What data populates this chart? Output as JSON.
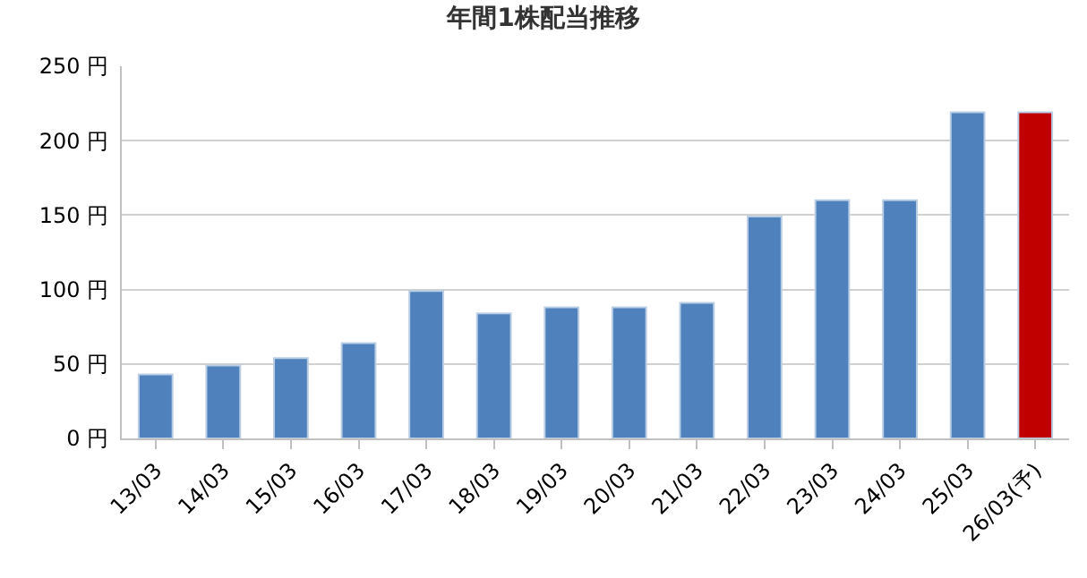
{
  "chart_data": {
    "type": "bar",
    "title": "年間1株配当推移",
    "categories": [
      "13/03",
      "14/03",
      "15/03",
      "16/03",
      "17/03",
      "18/03",
      "19/03",
      "20/03",
      "21/03",
      "22/03",
      "23/03",
      "24/03",
      "25/03",
      "26/03(予)"
    ],
    "values": [
      43,
      49,
      54,
      64,
      99,
      84,
      88,
      88,
      91,
      149,
      160,
      160,
      219,
      219
    ],
    "colors": [
      "#4f81bd",
      "#4f81bd",
      "#4f81bd",
      "#4f81bd",
      "#4f81bd",
      "#4f81bd",
      "#4f81bd",
      "#4f81bd",
      "#4f81bd",
      "#4f81bd",
      "#4f81bd",
      "#4f81bd",
      "#4f81bd",
      "#c00000"
    ],
    "ylim": [
      0,
      250
    ],
    "yticks": [
      {
        "value": 0,
        "label": "0 円"
      },
      {
        "value": 50,
        "label": "50 円"
      },
      {
        "value": 100,
        "label": "100 円"
      },
      {
        "value": 150,
        "label": "150 円"
      },
      {
        "value": 200,
        "label": "200 円"
      },
      {
        "value": 250,
        "label": "250 円"
      }
    ],
    "grid": "y"
  }
}
